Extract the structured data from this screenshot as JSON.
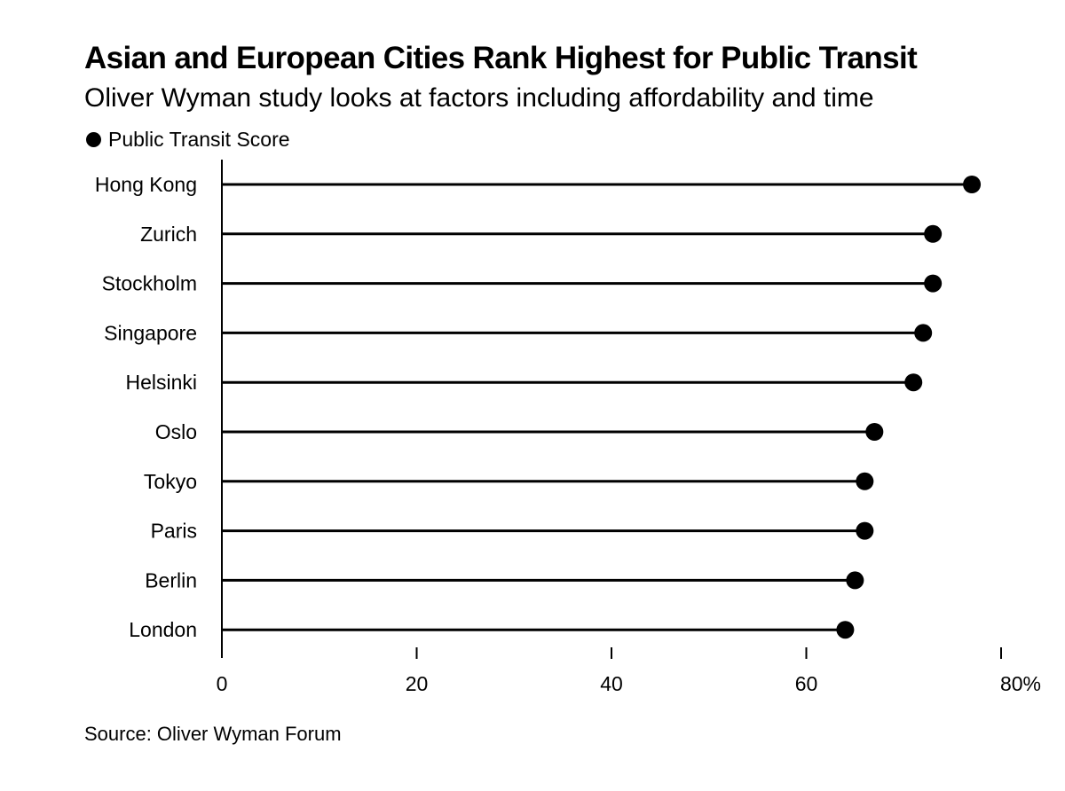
{
  "chart_data": {
    "type": "lollipop",
    "title": "Asian and European Cities Rank Highest for Public Transit",
    "subtitle": "Oliver Wyman study looks at factors including affordability and time",
    "legend": {
      "position": "top-left",
      "entries": [
        "Public Transit Score"
      ]
    },
    "categories": [
      "Hong Kong",
      "Zurich",
      "Stockholm",
      "Singapore",
      "Helsinki",
      "Oslo",
      "Tokyo",
      "Paris",
      "Berlin",
      "London"
    ],
    "series": [
      {
        "name": "Public Transit Score",
        "values": [
          77,
          73,
          73,
          72,
          71,
          67,
          66,
          66,
          65,
          64
        ]
      }
    ],
    "xlim": [
      0,
      80
    ],
    "xticks": [
      0,
      20,
      40,
      60,
      80
    ],
    "xtick_labels": [
      "0",
      "20",
      "40",
      "60",
      "80%"
    ],
    "grid": false,
    "source": "Source: Oliver Wyman Forum",
    "colors": {
      "marks": "#000000",
      "background": "#ffffff"
    }
  }
}
